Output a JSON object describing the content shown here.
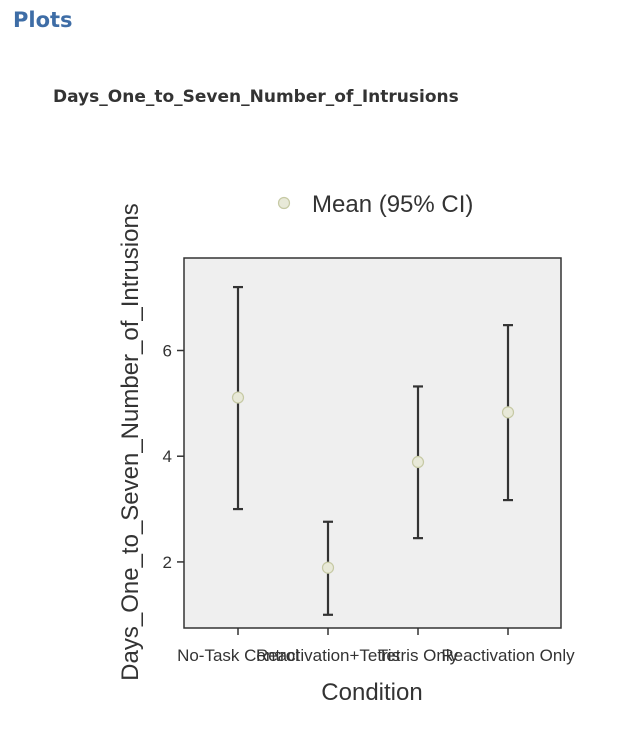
{
  "page": {
    "section_title": "Plots",
    "plot_title": "Days_One_to_Seven_Number_of_Intrusions"
  },
  "colors": {
    "panel_bg": "#efefef",
    "point_fill": "#e8e9d8",
    "point_stroke": "#c6c9a4",
    "errorbar": "#333333",
    "section_title": "#3e6da6"
  },
  "chart_data": {
    "type": "scatter",
    "subtype": "errorbar",
    "title": "",
    "legend": {
      "label": "Mean (95% CI)",
      "position": "top"
    },
    "xlabel": "Condition",
    "ylabel": "Days_One_to_Seven_Number_of_Intrusions",
    "categories": [
      "No-Task Control",
      "Reactivation+Tetris",
      "Tetris Only",
      "Reactivation Only"
    ],
    "series": [
      {
        "name": "Mean (95% CI)",
        "values": [
          5.11,
          1.89,
          3.89,
          4.83
        ],
        "ci_lower": [
          3.0,
          1.0,
          2.45,
          3.17
        ],
        "ci_upper": [
          7.2,
          2.76,
          5.32,
          6.48
        ]
      }
    ],
    "yticks": [
      2,
      4,
      6
    ],
    "ylim": [
      0.75,
      7.75
    ],
    "grid": false
  }
}
